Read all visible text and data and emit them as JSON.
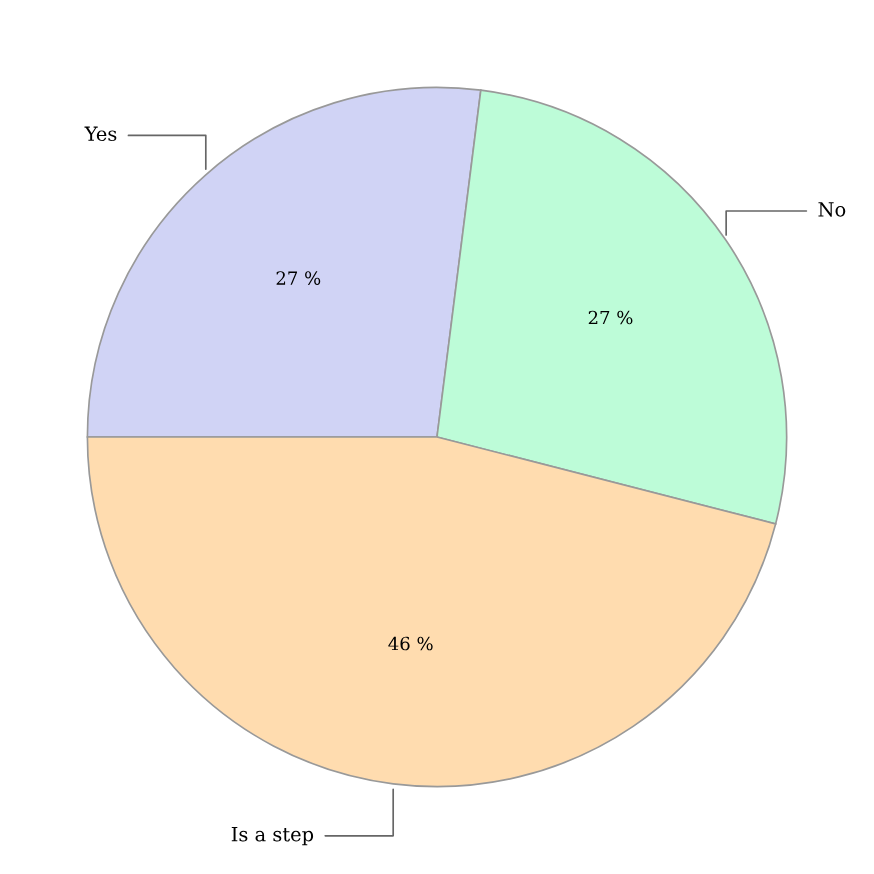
{
  "chart_data": {
    "type": "pie",
    "categories": [
      "Yes",
      "No",
      "Is a step"
    ],
    "values": [
      27,
      27,
      46
    ],
    "value_labels": [
      "27 %",
      "27 %",
      "46 %"
    ],
    "colors": [
      "#d0d3f5",
      "#bdfcd8",
      "#ffdcaf"
    ],
    "legend": false
  }
}
